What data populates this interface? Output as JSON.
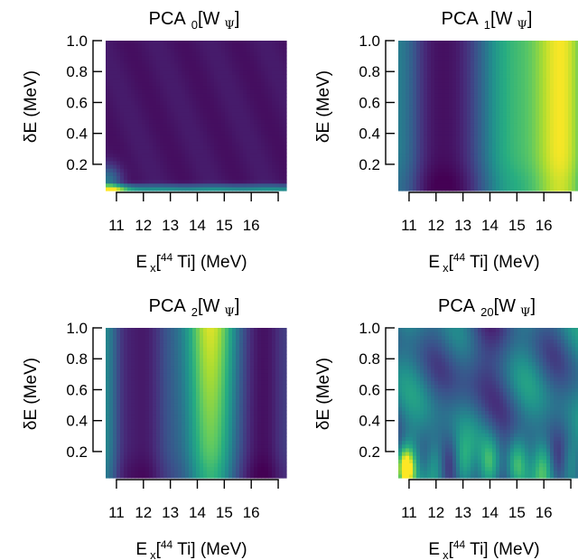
{
  "chart_data": [
    {
      "type": "heatmap",
      "title_main": "PCA",
      "title_sub": "0",
      "title_tail": "[W",
      "title_psi": "Ψ",
      "title_close": "]",
      "ylabel": "δE  (MeV)",
      "y_ticks": [
        "0.2",
        "0.4",
        "0.6",
        "0.8",
        "1.0"
      ],
      "x_ticks": [
        "11",
        "12",
        "13",
        "14",
        "15",
        "16"
      ],
      "xlabel_E": "E",
      "xlabel_sub": "x",
      "xlabel_open": "[",
      "xlabel_sup": "44",
      "xlabel_rest": " Ti] (MeV)",
      "xlim": [
        10.6,
        17.3
      ],
      "ylim": [
        0.03,
        1.0
      ],
      "colormap": "viridis",
      "pattern": "Dark purple field overall; bright yellow-green band along the bottom edge (δE ≈ 0.05) brightest at Ex ≈ 10.8, with a faint teal rise near the bottom-left corner."
    },
    {
      "type": "heatmap",
      "title_main": "PCA",
      "title_sub": "1",
      "title_tail": "[W",
      "title_psi": "Ψ",
      "title_close": "]",
      "ylabel": "δE  (MeV)",
      "y_ticks": [
        "0.2",
        "0.4",
        "0.6",
        "0.8",
        "1.0"
      ],
      "x_ticks": [
        "11",
        "12",
        "13",
        "14",
        "15",
        "16"
      ],
      "xlabel_E": "E",
      "xlabel_sub": "x",
      "xlabel_open": "[",
      "xlabel_sup": "44",
      "xlabel_rest": " Ti] (MeV)",
      "xlim": [
        10.6,
        17.3
      ],
      "ylim": [
        0.03,
        1.0
      ],
      "colormap": "viridis",
      "pattern": "Vertical bands: teal near Ex 10.7, dark purple minimum around Ex 12, green near 14.5, bright yellow maximum around Ex 16.5–17."
    },
    {
      "type": "heatmap",
      "title_main": "PCA",
      "title_sub": "2",
      "title_tail": "[W",
      "title_psi": "Ψ",
      "title_close": "]",
      "ylabel": "δE  (MeV)",
      "y_ticks": [
        "0.2",
        "0.4",
        "0.6",
        "0.8",
        "1.0"
      ],
      "x_ticks": [
        "11",
        "12",
        "13",
        "14",
        "15",
        "16"
      ],
      "xlabel_E": "E",
      "xlabel_sub": "x",
      "xlabel_open": "[",
      "xlabel_sup": "44",
      "xlabel_rest": " Ti] (MeV)",
      "xlim": [
        10.6,
        17.3
      ],
      "ylim": [
        0.03,
        1.0
      ],
      "colormap": "viridis",
      "pattern": "Vertical bands: teal at left edge, purple minimum near Ex 11.5, bright yellow maximum near Ex 14.5 (brightest at high δE), purple again near Ex 16.7."
    },
    {
      "type": "heatmap",
      "title_main": "PCA",
      "title_sub": "20",
      "title_tail": "[W",
      "title_psi": "Ψ",
      "title_close": "]",
      "ylabel": "δE  (MeV)",
      "y_ticks": [
        "0.2",
        "0.4",
        "0.6",
        "0.8",
        "1.0"
      ],
      "x_ticks": [
        "11",
        "12",
        "13",
        "14",
        "15",
        "16"
      ],
      "xlabel_E": "E",
      "xlabel_sub": "x",
      "xlabel_open": "[",
      "xlabel_sup": "44",
      "xlabel_rest": " Ti] (MeV)",
      "xlim": [
        10.6,
        17.3
      ],
      "ylim": [
        0.03,
        1.0
      ],
      "colormap": "viridis",
      "pattern": "Oscillatory blob pattern; yellow hot spot at low δE near Ex 11, periodic green streaks along the bottom at roughly 1 MeV spacing, purple lobes at mid δE."
    }
  ]
}
